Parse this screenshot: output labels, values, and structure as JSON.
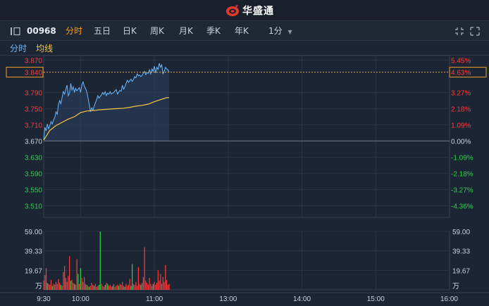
{
  "header": {
    "app_name": "华盛通"
  },
  "toolbar": {
    "stock_code": "00968",
    "tabs": [
      {
        "label": "分时",
        "active": true
      },
      {
        "label": "五日",
        "active": false
      },
      {
        "label": "日K",
        "active": false
      },
      {
        "label": "周K",
        "active": false
      },
      {
        "label": "月K",
        "active": false
      },
      {
        "label": "季K",
        "active": false
      },
      {
        "label": "年K",
        "active": false
      }
    ],
    "interval": "1分"
  },
  "subbar": {
    "timeshare_label": "分时",
    "avg_label": "均线"
  },
  "colors": {
    "up": "#ff3b3b",
    "down": "#2fd04a",
    "price_line": "#6cb8ff",
    "avg_line": "#f5c842",
    "accent": "#f0a028"
  },
  "chart_data": {
    "type": "line",
    "price_axis": {
      "ticks": [
        "3.870",
        "3.790",
        "3.750",
        "3.710",
        "3.670",
        "3.630",
        "3.590",
        "3.550",
        "3.510"
      ],
      "tick_values": [
        3.87,
        3.79,
        3.75,
        3.71,
        3.67,
        3.63,
        3.59,
        3.55,
        3.51
      ],
      "prev_close": 3.67,
      "ylim": [
        3.4916,
        3.8706
      ]
    },
    "pct_axis": {
      "ticks": [
        "5.45%",
        "3.27%",
        "2.18%",
        "1.09%",
        "0.00%",
        "-1.09%",
        "-2.18%",
        "-3.27%",
        "-4.36%"
      ]
    },
    "current": {
      "price": "3.840",
      "pct": "4.63%",
      "value": 3.84
    },
    "x_ticks": [
      "9:30",
      "10:00",
      "11:00",
      "13:00",
      "14:00",
      "15:00",
      "16:00"
    ],
    "x_tick_minutes": [
      0,
      30,
      90,
      150,
      210,
      270,
      330
    ],
    "series": [
      {
        "x": [
          0,
          1,
          2,
          3,
          4,
          5,
          6,
          7,
          8,
          9,
          10,
          11,
          12,
          13,
          14,
          15,
          16,
          17,
          18,
          19,
          20,
          21,
          22,
          23,
          24,
          25,
          26,
          27,
          28,
          29,
          30,
          31,
          32,
          33,
          34,
          35,
          36,
          37,
          38,
          39,
          40,
          41,
          42,
          43,
          44,
          45,
          46,
          47,
          48,
          49,
          50,
          51,
          52,
          53,
          54,
          55,
          56,
          57,
          58,
          59,
          60,
          61,
          62,
          63,
          64,
          65,
          66,
          67,
          68,
          69,
          70,
          71,
          72,
          73,
          74,
          75,
          76,
          77,
          78,
          79,
          80,
          81,
          82,
          83,
          84,
          85,
          86,
          87,
          88,
          89,
          90,
          91,
          92,
          93,
          94,
          95,
          96,
          97,
          98,
          99,
          100,
          101,
          102
        ],
        "values": [
          3.672,
          3.704,
          3.695,
          3.712,
          3.7,
          3.708,
          3.718,
          3.712,
          3.722,
          3.728,
          3.742,
          3.736,
          3.76,
          3.77,
          3.762,
          3.778,
          3.792,
          3.786,
          3.798,
          3.808,
          3.782,
          3.788,
          3.812,
          3.796,
          3.804,
          3.791,
          3.8,
          3.794,
          3.798,
          3.802,
          3.79,
          3.808,
          3.816,
          3.806,
          3.8,
          3.792,
          3.778,
          3.76,
          3.742,
          3.752,
          3.746,
          3.756,
          3.764,
          3.772,
          3.782,
          3.776,
          3.78,
          3.784,
          3.79,
          3.785,
          3.792,
          3.782,
          3.788,
          3.786,
          3.792,
          3.786,
          3.788,
          3.79,
          3.794,
          3.797,
          3.786,
          3.791,
          3.795,
          3.793,
          3.808,
          3.798,
          3.804,
          3.812,
          3.82,
          3.815,
          3.819,
          3.823,
          3.817,
          3.822,
          3.829,
          3.826,
          3.836,
          3.831,
          3.833,
          3.829,
          3.832,
          3.838,
          3.842,
          3.834,
          3.839,
          3.837,
          3.846,
          3.836,
          3.848,
          3.842,
          3.855,
          3.838,
          3.852,
          3.847,
          3.862,
          3.852,
          3.858,
          3.836,
          3.842,
          3.852,
          3.848,
          3.846,
          3.84
        ]
      },
      {
        "x": [
          0,
          5,
          10,
          15,
          20,
          25,
          30,
          35,
          40,
          45,
          50,
          55,
          60,
          65,
          70,
          75,
          80,
          85,
          90,
          95,
          100,
          102
        ],
        "values": [
          3.672,
          3.696,
          3.708,
          3.716,
          3.724,
          3.73,
          3.74,
          3.744,
          3.745,
          3.747,
          3.748,
          3.749,
          3.75,
          3.751,
          3.753,
          3.756,
          3.758,
          3.761,
          3.767,
          3.772,
          3.777,
          3.777
        ]
      }
    ],
    "volume_axis": {
      "ticks": [
        "59.00",
        "39.33",
        "19.67"
      ],
      "tick_values": [
        59.0,
        39.33,
        19.67
      ],
      "unit": "万",
      "max": 59.0
    },
    "volume_bars": [
      {
        "m": 0,
        "v": 9,
        "d": "up"
      },
      {
        "m": 1,
        "v": 15,
        "d": "up"
      },
      {
        "m": 2,
        "v": 22,
        "d": "up"
      },
      {
        "m": 3,
        "v": 7,
        "d": "down"
      },
      {
        "m": 4,
        "v": 6,
        "d": "up"
      },
      {
        "m": 5,
        "v": 5,
        "d": "up"
      },
      {
        "m": 6,
        "v": 10,
        "d": "up"
      },
      {
        "m": 7,
        "v": 4,
        "d": "down"
      },
      {
        "m": 8,
        "v": 6,
        "d": "up"
      },
      {
        "m": 9,
        "v": 5,
        "d": "up"
      },
      {
        "m": 10,
        "v": 8,
        "d": "up"
      },
      {
        "m": 11,
        "v": 6,
        "d": "up"
      },
      {
        "m": 12,
        "v": 11,
        "d": "up"
      },
      {
        "m": 13,
        "v": 7,
        "d": "up"
      },
      {
        "m": 14,
        "v": 5,
        "d": "down"
      },
      {
        "m": 15,
        "v": 4,
        "d": "up"
      },
      {
        "m": 16,
        "v": 18,
        "d": "up"
      },
      {
        "m": 17,
        "v": 24,
        "d": "up"
      },
      {
        "m": 18,
        "v": 12,
        "d": "up"
      },
      {
        "m": 19,
        "v": 8,
        "d": "up"
      },
      {
        "m": 20,
        "v": 14,
        "d": "up"
      },
      {
        "m": 21,
        "v": 34,
        "d": "up"
      },
      {
        "m": 22,
        "v": 9,
        "d": "down"
      },
      {
        "m": 23,
        "v": 10,
        "d": "up"
      },
      {
        "m": 24,
        "v": 7,
        "d": "up"
      },
      {
        "m": 25,
        "v": 6,
        "d": "down"
      },
      {
        "m": 26,
        "v": 5,
        "d": "up"
      },
      {
        "m": 27,
        "v": 31,
        "d": "up"
      },
      {
        "m": 28,
        "v": 16,
        "d": "down"
      },
      {
        "m": 29,
        "v": 6,
        "d": "up"
      },
      {
        "m": 30,
        "v": 22,
        "d": "down"
      },
      {
        "m": 31,
        "v": 12,
        "d": "up"
      },
      {
        "m": 32,
        "v": 8,
        "d": "up"
      },
      {
        "m": 33,
        "v": 13,
        "d": "up"
      },
      {
        "m": 34,
        "v": 6,
        "d": "up"
      },
      {
        "m": 35,
        "v": 5,
        "d": "down"
      },
      {
        "m": 36,
        "v": 4,
        "d": "up"
      },
      {
        "m": 37,
        "v": 3,
        "d": "down"
      },
      {
        "m": 38,
        "v": 4,
        "d": "up"
      },
      {
        "m": 39,
        "v": 7,
        "d": "up"
      },
      {
        "m": 40,
        "v": 5,
        "d": "up"
      },
      {
        "m": 41,
        "v": 4,
        "d": "down"
      },
      {
        "m": 42,
        "v": 6,
        "d": "up"
      },
      {
        "m": 43,
        "v": 3,
        "d": "up"
      },
      {
        "m": 44,
        "v": 4,
        "d": "up"
      },
      {
        "m": 45,
        "v": 5,
        "d": "down"
      },
      {
        "m": 46,
        "v": 59,
        "d": "down"
      },
      {
        "m": 47,
        "v": 6,
        "d": "up"
      },
      {
        "m": 48,
        "v": 4,
        "d": "up"
      },
      {
        "m": 49,
        "v": 3,
        "d": "up"
      },
      {
        "m": 50,
        "v": 5,
        "d": "down"
      },
      {
        "m": 51,
        "v": 7,
        "d": "up"
      },
      {
        "m": 52,
        "v": 6,
        "d": "down"
      },
      {
        "m": 53,
        "v": 4,
        "d": "up"
      },
      {
        "m": 54,
        "v": 5,
        "d": "up"
      },
      {
        "m": 55,
        "v": 3,
        "d": "up"
      },
      {
        "m": 56,
        "v": 4,
        "d": "down"
      },
      {
        "m": 57,
        "v": 6,
        "d": "up"
      },
      {
        "m": 58,
        "v": 3,
        "d": "up"
      },
      {
        "m": 59,
        "v": 4,
        "d": "up"
      },
      {
        "m": 60,
        "v": 5,
        "d": "up"
      },
      {
        "m": 61,
        "v": 4,
        "d": "down"
      },
      {
        "m": 62,
        "v": 6,
        "d": "up"
      },
      {
        "m": 63,
        "v": 5,
        "d": "up"
      },
      {
        "m": 64,
        "v": 8,
        "d": "up"
      },
      {
        "m": 65,
        "v": 4,
        "d": "up"
      },
      {
        "m": 66,
        "v": 3,
        "d": "down"
      },
      {
        "m": 67,
        "v": 6,
        "d": "up"
      },
      {
        "m": 68,
        "v": 4,
        "d": "up"
      },
      {
        "m": 69,
        "v": 5,
        "d": "up"
      },
      {
        "m": 70,
        "v": 11,
        "d": "up"
      },
      {
        "m": 71,
        "v": 4,
        "d": "down"
      },
      {
        "m": 72,
        "v": 26,
        "d": "down"
      },
      {
        "m": 73,
        "v": 6,
        "d": "up"
      },
      {
        "m": 74,
        "v": 5,
        "d": "up"
      },
      {
        "m": 75,
        "v": 8,
        "d": "up"
      },
      {
        "m": 76,
        "v": 4,
        "d": "up"
      },
      {
        "m": 77,
        "v": 23,
        "d": "up"
      },
      {
        "m": 78,
        "v": 6,
        "d": "up"
      },
      {
        "m": 79,
        "v": 5,
        "d": "down"
      },
      {
        "m": 80,
        "v": 7,
        "d": "up"
      },
      {
        "m": 81,
        "v": 13,
        "d": "up"
      },
      {
        "m": 82,
        "v": 43,
        "d": "up"
      },
      {
        "m": 83,
        "v": 9,
        "d": "up"
      },
      {
        "m": 84,
        "v": 7,
        "d": "up"
      },
      {
        "m": 85,
        "v": 5,
        "d": "up"
      },
      {
        "m": 86,
        "v": 12,
        "d": "up"
      },
      {
        "m": 87,
        "v": 6,
        "d": "up"
      },
      {
        "m": 88,
        "v": 4,
        "d": "up"
      },
      {
        "m": 89,
        "v": 6,
        "d": "down"
      },
      {
        "m": 90,
        "v": 8,
        "d": "up"
      },
      {
        "m": 91,
        "v": 5,
        "d": "up"
      },
      {
        "m": 92,
        "v": 7,
        "d": "up"
      },
      {
        "m": 93,
        "v": 20,
        "d": "up"
      },
      {
        "m": 94,
        "v": 9,
        "d": "up"
      },
      {
        "m": 95,
        "v": 16,
        "d": "up"
      },
      {
        "m": 96,
        "v": 6,
        "d": "up"
      },
      {
        "m": 97,
        "v": 13,
        "d": "up"
      },
      {
        "m": 98,
        "v": 8,
        "d": "up"
      },
      {
        "m": 99,
        "v": 25,
        "d": "up"
      },
      {
        "m": 100,
        "v": 10,
        "d": "up"
      },
      {
        "m": 101,
        "v": 5,
        "d": "up"
      },
      {
        "m": 102,
        "v": 6,
        "d": "up"
      }
    ]
  }
}
